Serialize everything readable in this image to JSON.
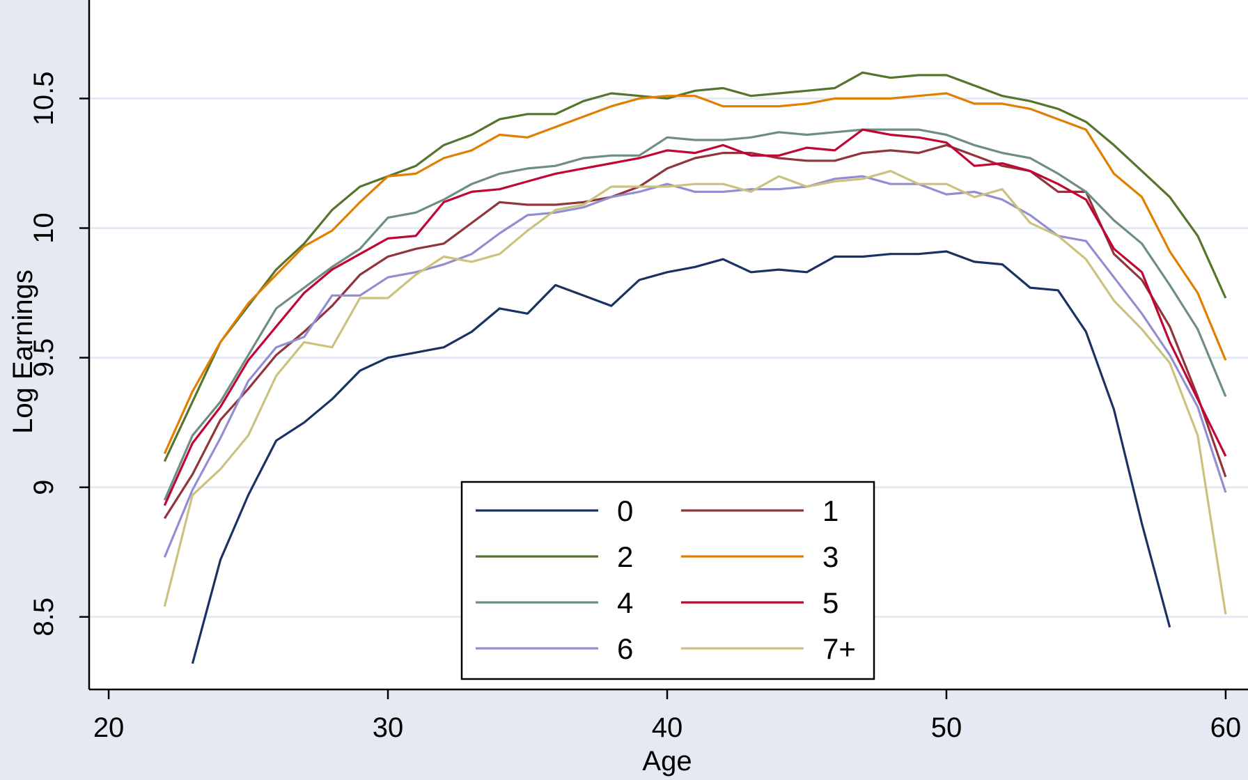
{
  "chart_data": {
    "type": "line",
    "title": "",
    "xlabel": "Age",
    "ylabel": "Log Earnings",
    "xlim": [
      19.3,
      60.8
    ],
    "ylim": [
      8.22,
      10.88
    ],
    "xticks": [
      20,
      30,
      40,
      50,
      60
    ],
    "xtick_labels": [
      "20",
      "30",
      "40",
      "50",
      "60"
    ],
    "yticks": [
      8.5,
      9,
      9.5,
      10,
      10.5
    ],
    "ytick_labels": [
      "8.5",
      "9",
      "9.5",
      "10",
      "10.5"
    ],
    "grid": "horizontal",
    "legend": "bottom-center, 2 columns",
    "x": [
      22,
      23,
      24,
      25,
      26,
      27,
      28,
      29,
      30,
      31,
      32,
      33,
      34,
      35,
      36,
      37,
      38,
      39,
      40,
      41,
      42,
      43,
      44,
      45,
      46,
      47,
      48,
      49,
      50,
      51,
      52,
      53,
      54,
      55,
      56,
      57,
      58,
      59,
      60
    ],
    "series": [
      {
        "name": "0",
        "color": "#1a3263",
        "values": [
          null,
          8.32,
          8.72,
          8.97,
          9.18,
          9.25,
          9.34,
          9.45,
          9.5,
          9.52,
          9.54,
          9.6,
          9.69,
          9.67,
          9.78,
          9.74,
          9.7,
          9.8,
          9.83,
          9.85,
          9.88,
          9.83,
          9.84,
          9.83,
          9.89,
          9.89,
          9.9,
          9.9,
          9.91,
          9.87,
          9.86,
          9.77,
          9.76,
          9.6,
          9.3,
          8.86,
          8.46,
          null,
          null
        ]
      },
      {
        "name": "1",
        "color": "#90353b",
        "values": [
          8.88,
          9.05,
          9.26,
          9.38,
          9.51,
          9.6,
          9.7,
          9.82,
          9.89,
          9.92,
          9.94,
          10.02,
          10.1,
          10.09,
          10.09,
          10.1,
          10.12,
          10.16,
          10.23,
          10.27,
          10.29,
          10.29,
          10.27,
          10.26,
          10.26,
          10.29,
          10.3,
          10.29,
          10.32,
          10.28,
          10.24,
          10.22,
          10.14,
          10.14,
          9.9,
          9.8,
          9.62,
          9.35,
          9.04
        ]
      },
      {
        "name": "2",
        "color": "#55752f",
        "values": [
          9.1,
          9.33,
          9.56,
          9.7,
          9.84,
          9.94,
          10.07,
          10.16,
          10.2,
          10.24,
          10.32,
          10.36,
          10.42,
          10.44,
          10.44,
          10.49,
          10.52,
          10.51,
          10.5,
          10.53,
          10.54,
          10.51,
          10.52,
          10.53,
          10.54,
          10.6,
          10.58,
          10.59,
          10.59,
          10.55,
          10.51,
          10.49,
          10.46,
          10.41,
          10.32,
          10.22,
          10.12,
          9.97,
          9.73
        ]
      },
      {
        "name": "3",
        "color": "#e37e00",
        "values": [
          9.13,
          9.37,
          9.56,
          9.71,
          9.82,
          9.93,
          9.99,
          10.1,
          10.2,
          10.21,
          10.27,
          10.3,
          10.36,
          10.35,
          10.39,
          10.43,
          10.47,
          10.5,
          10.51,
          10.51,
          10.47,
          10.47,
          10.47,
          10.48,
          10.5,
          10.5,
          10.5,
          10.51,
          10.52,
          10.48,
          10.48,
          10.46,
          10.42,
          10.38,
          10.21,
          10.12,
          9.91,
          9.75,
          9.49
        ]
      },
      {
        "name": "4",
        "color": "#6e8e84",
        "values": [
          8.95,
          9.2,
          9.33,
          9.51,
          9.69,
          9.77,
          9.85,
          9.92,
          10.04,
          10.06,
          10.11,
          10.17,
          10.21,
          10.23,
          10.24,
          10.27,
          10.28,
          10.28,
          10.35,
          10.34,
          10.34,
          10.35,
          10.37,
          10.36,
          10.37,
          10.38,
          10.38,
          10.38,
          10.36,
          10.32,
          10.29,
          10.27,
          10.21,
          10.14,
          10.03,
          9.94,
          9.78,
          9.61,
          9.35
        ]
      },
      {
        "name": "5",
        "color": "#c10534",
        "values": [
          8.93,
          9.17,
          9.31,
          9.49,
          9.62,
          9.75,
          9.84,
          9.9,
          9.96,
          9.97,
          10.1,
          10.14,
          10.15,
          10.18,
          10.21,
          10.23,
          10.25,
          10.27,
          10.3,
          10.29,
          10.32,
          10.28,
          10.28,
          10.31,
          10.3,
          10.38,
          10.36,
          10.35,
          10.33,
          10.24,
          10.25,
          10.22,
          10.17,
          10.11,
          9.92,
          9.83,
          9.56,
          9.34,
          9.12
        ]
      },
      {
        "name": "6",
        "color": "#938dd2",
        "values": [
          8.73,
          8.99,
          9.19,
          9.41,
          9.54,
          9.58,
          9.74,
          9.74,
          9.81,
          9.83,
          9.86,
          9.9,
          9.98,
          10.05,
          10.06,
          10.08,
          10.12,
          10.14,
          10.17,
          10.14,
          10.14,
          10.15,
          10.15,
          10.16,
          10.19,
          10.2,
          10.17,
          10.17,
          10.13,
          10.14,
          10.11,
          10.05,
          9.97,
          9.95,
          9.81,
          9.67,
          9.51,
          9.31,
          8.98
        ]
      },
      {
        "name": "7+",
        "color": "#cac27e",
        "values": [
          8.54,
          8.97,
          9.07,
          9.2,
          9.43,
          9.56,
          9.54,
          9.73,
          9.73,
          9.82,
          9.89,
          9.87,
          9.9,
          9.99,
          10.07,
          10.09,
          10.16,
          10.16,
          10.16,
          10.17,
          10.17,
          10.14,
          10.2,
          10.16,
          10.18,
          10.19,
          10.22,
          10.17,
          10.17,
          10.12,
          10.15,
          10.02,
          9.97,
          9.88,
          9.72,
          9.61,
          9.48,
          9.2,
          8.51
        ]
      }
    ]
  }
}
